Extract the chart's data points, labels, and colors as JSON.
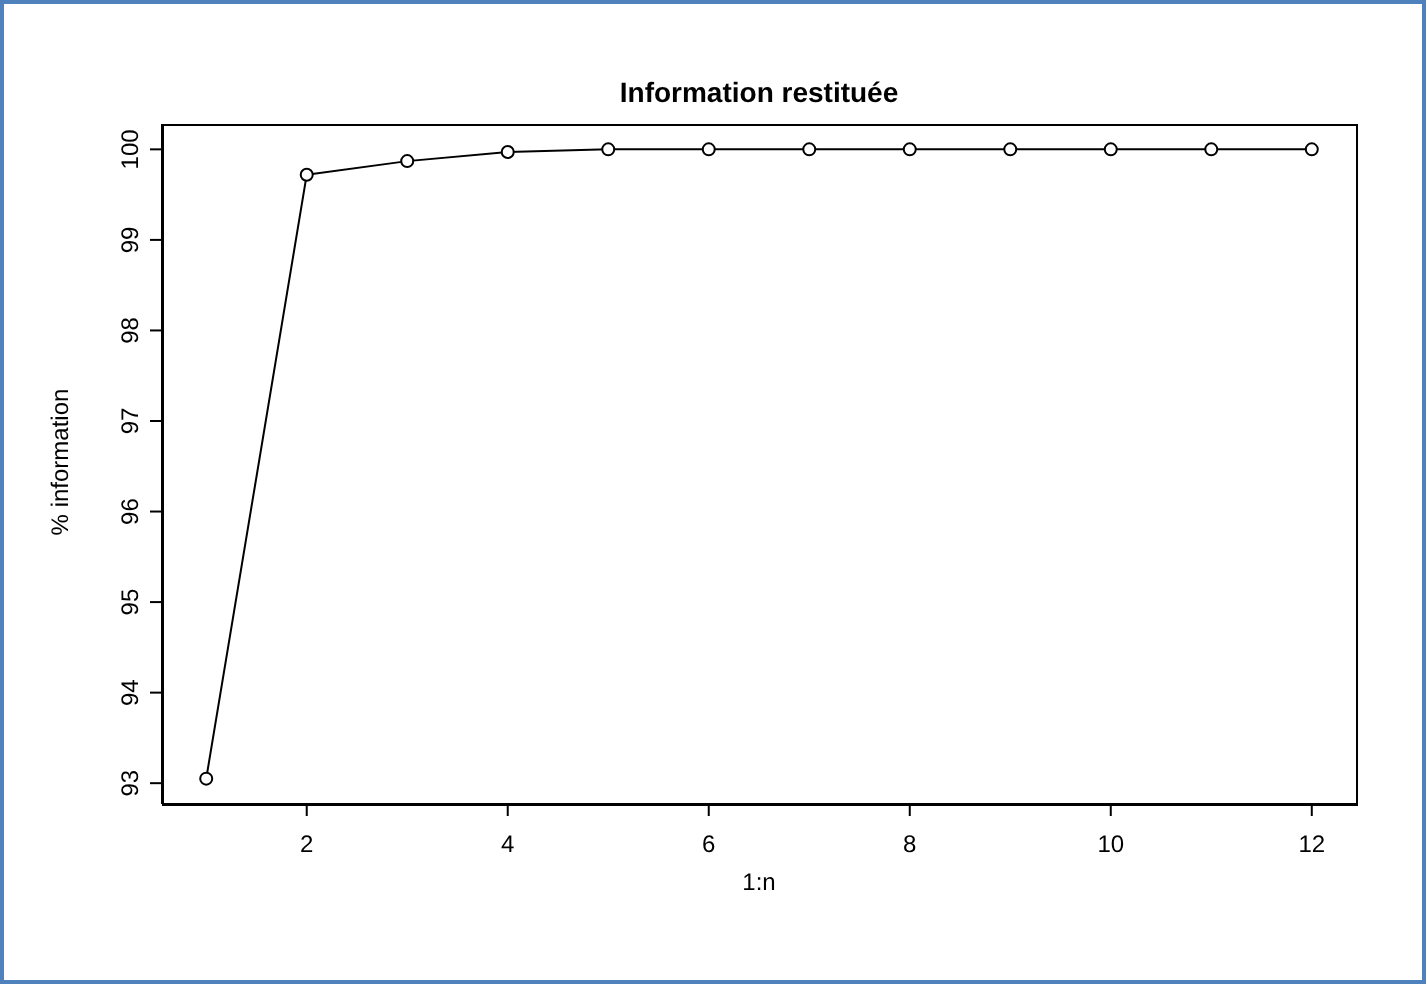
{
  "chart_data": {
    "type": "line",
    "title": "Information restituée",
    "xlabel": "1:n",
    "ylabel": "% information",
    "x": [
      1,
      2,
      3,
      4,
      5,
      6,
      7,
      8,
      9,
      10,
      11,
      12
    ],
    "series": [
      {
        "color": "#000000",
        "values": [
          93.05,
          99.72,
          99.87,
          99.97,
          100,
          100,
          100,
          100,
          100,
          100,
          100,
          100
        ]
      }
    ],
    "xlim": [
      0.56,
      12.44
    ],
    "xticks": [
      2,
      4,
      6,
      8,
      10,
      12
    ],
    "ylim": [
      92.77,
      100.28
    ],
    "yticks": [
      93,
      94,
      95,
      96,
      97,
      98,
      99,
      100
    ],
    "grid": false,
    "legend": false,
    "marker": "circle",
    "line_style": "solid"
  }
}
